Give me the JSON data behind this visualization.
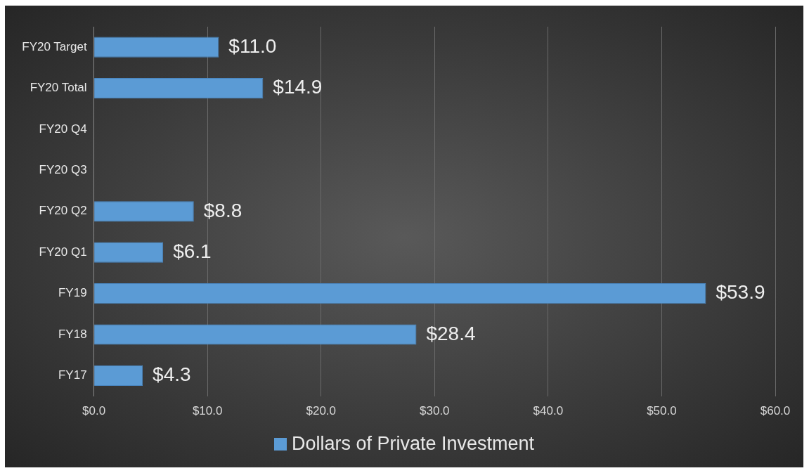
{
  "chart_data": {
    "type": "bar",
    "orientation": "horizontal",
    "categories": [
      "FY20 Target",
      "FY20 Total",
      "FY20 Q4",
      "FY20 Q3",
      "FY20 Q2",
      "FY20 Q1",
      "FY19",
      "FY18",
      "FY17"
    ],
    "series": [
      {
        "name": "Dollars of Private Investment",
        "color": "#5b9bd5",
        "values": [
          11.0,
          14.9,
          null,
          null,
          8.8,
          6.1,
          53.9,
          28.4,
          4.3
        ],
        "value_labels": [
          "$11.0",
          "$14.9",
          null,
          null,
          "$8.8",
          "$6.1",
          "$53.9",
          "$28.4",
          "$4.3"
        ]
      }
    ],
    "xlim": [
      0,
      60
    ],
    "xticks": [
      {
        "value": 0,
        "label": "$0.0"
      },
      {
        "value": 10,
        "label": "$10.0"
      },
      {
        "value": 20,
        "label": "$20.0"
      },
      {
        "value": 30,
        "label": "$30.0"
      },
      {
        "value": 40,
        "label": "$40.0"
      },
      {
        "value": 50,
        "label": "$50.0"
      },
      {
        "value": 60,
        "label": "$60.0"
      }
    ],
    "grid": "x",
    "legend": "bottom"
  }
}
